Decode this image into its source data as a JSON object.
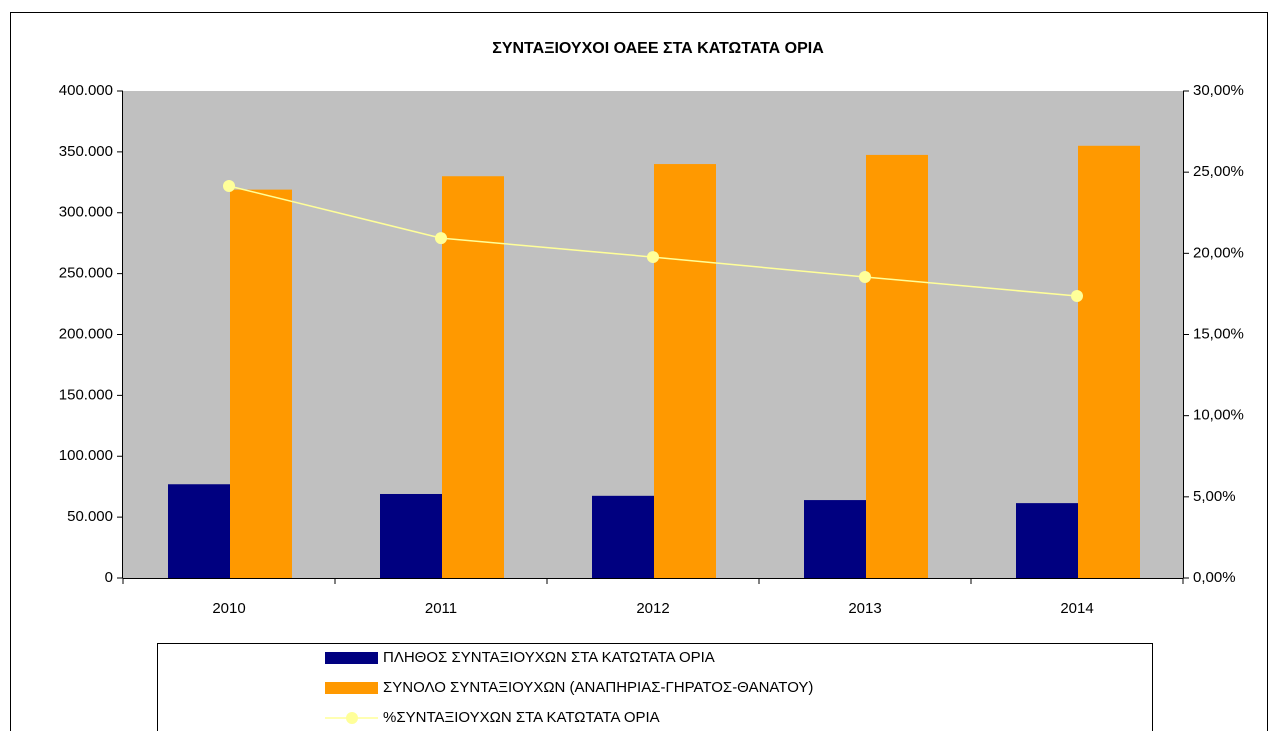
{
  "chart_data": {
    "type": "bar_line",
    "title": "ΣΥΝΤΑΞΙΟΥΧΟΙ ΟΑΕΕ ΣΤΑ ΚΑΤΩΤΑΤΑ ΟΡΙΑ",
    "categories": [
      "2010",
      "2011",
      "2012",
      "2013",
      "2014"
    ],
    "series": [
      {
        "name": "ΠΛΗΘΟΣ ΣΥΝΤΑΞΙΟΥΧΩΝ ΣΤΑ ΚΑΤΩΤΑΤΑ ΟΡΙΑ",
        "color": "#000080",
        "type": "bar",
        "values": [
          77000,
          69000,
          67500,
          64000,
          61500
        ]
      },
      {
        "name": "ΣΥΝΟΛΟ ΣΥΝΤΑΞΙΟΥΧΩΝ (ΑΝΑΠΗΡΙΑΣ-ΓΗΡΑΤΟΣ-ΘΑΝΑΤΟΥ)",
        "color": "#ff9900",
        "type": "bar",
        "values": [
          319000,
          330000,
          340000,
          347500,
          355000
        ]
      },
      {
        "name": "%ΣΥΝΤΑΞΙΟΥΧΩΝ ΣΤΑ ΚΑΤΩΤΑΤΑ ΟΡΙΑ",
        "color": "#ffff99",
        "type": "line",
        "axis": "y2",
        "values": [
          24.15,
          20.94,
          19.77,
          18.54,
          17.37
        ]
      }
    ],
    "ylim": [
      0,
      400000
    ],
    "yticks": [
      0,
      {
        "value": 50000,
        "label": "50.000"
      },
      {
        "value": 100000,
        "label": "100.000"
      },
      {
        "value": 150000,
        "label": "150.000"
      },
      {
        "value": 200000,
        "label": "200.000"
      },
      {
        "value": 250000,
        "label": "250.000"
      },
      {
        "value": 300000,
        "label": "300.000"
      },
      {
        "value": 350000,
        "label": "350.000"
      },
      {
        "value": 400000,
        "label": "400.000"
      }
    ],
    "y2lim": [
      0,
      30
    ],
    "y2ticks": [
      {
        "value": 0,
        "label": "0,00%"
      },
      {
        "value": 5,
        "label": "5,00%"
      },
      {
        "value": 10,
        "label": "10,00%"
      },
      {
        "value": 15,
        "label": "15,00%"
      },
      {
        "value": 20,
        "label": "20,00%"
      },
      {
        "value": 25,
        "label": "25,00%"
      },
      {
        "value": 30,
        "label": "30,00%"
      }
    ],
    "plot_background": "#c0c0c0"
  }
}
